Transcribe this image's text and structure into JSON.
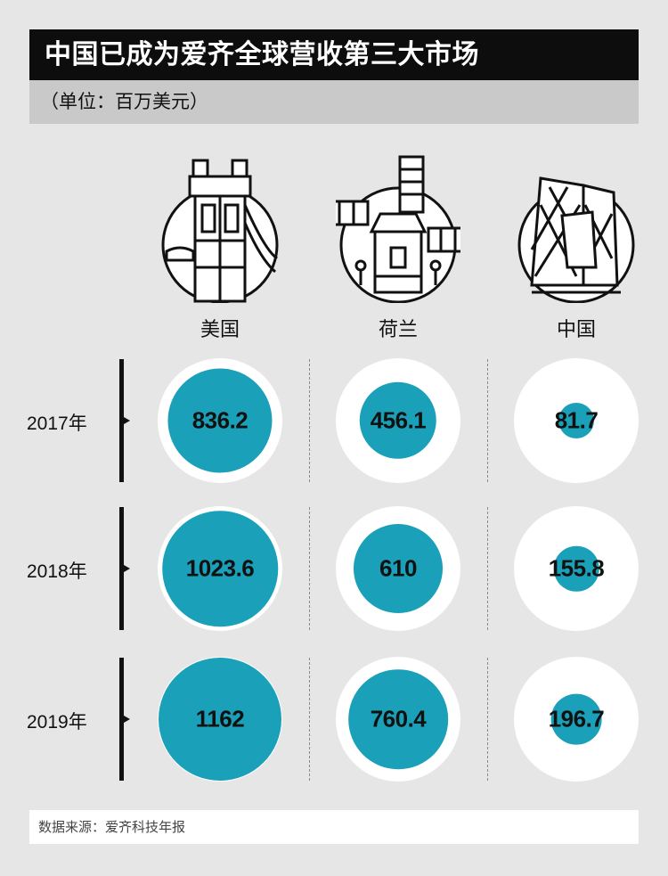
{
  "title": "中国已成为爱齐全球营收第三大市场",
  "unit": "（单位：百万美元）",
  "source": "数据来源：爱齐科技年报",
  "colors": {
    "accent": "#1aa0b8",
    "background": "#e6e6e6",
    "title_bg": "#0d0d0d",
    "unit_bg": "#c9c9c9"
  },
  "countries": [
    {
      "name": "美国",
      "icon": "bridge-landmark-icon"
    },
    {
      "name": "荷兰",
      "icon": "windmill-landmark-icon"
    },
    {
      "name": "中国",
      "icon": "cctv-tower-landmark-icon"
    }
  ],
  "years": [
    "2017年",
    "2018年",
    "2019年"
  ],
  "chart_data": {
    "type": "bubble-grid",
    "title": "中国已成为爱齐全球营收第三大市场",
    "subtitle": "（单位：百万美元）",
    "categories": [
      "美国",
      "荷兰",
      "中国"
    ],
    "rows": [
      "2017年",
      "2018年",
      "2019年"
    ],
    "values": [
      [
        "836.2",
        "456.1",
        "81.7"
      ],
      [
        "1023.6",
        "610",
        "155.8"
      ],
      [
        "1162",
        "760.4",
        "196.7"
      ]
    ],
    "max_value": 1162
  }
}
